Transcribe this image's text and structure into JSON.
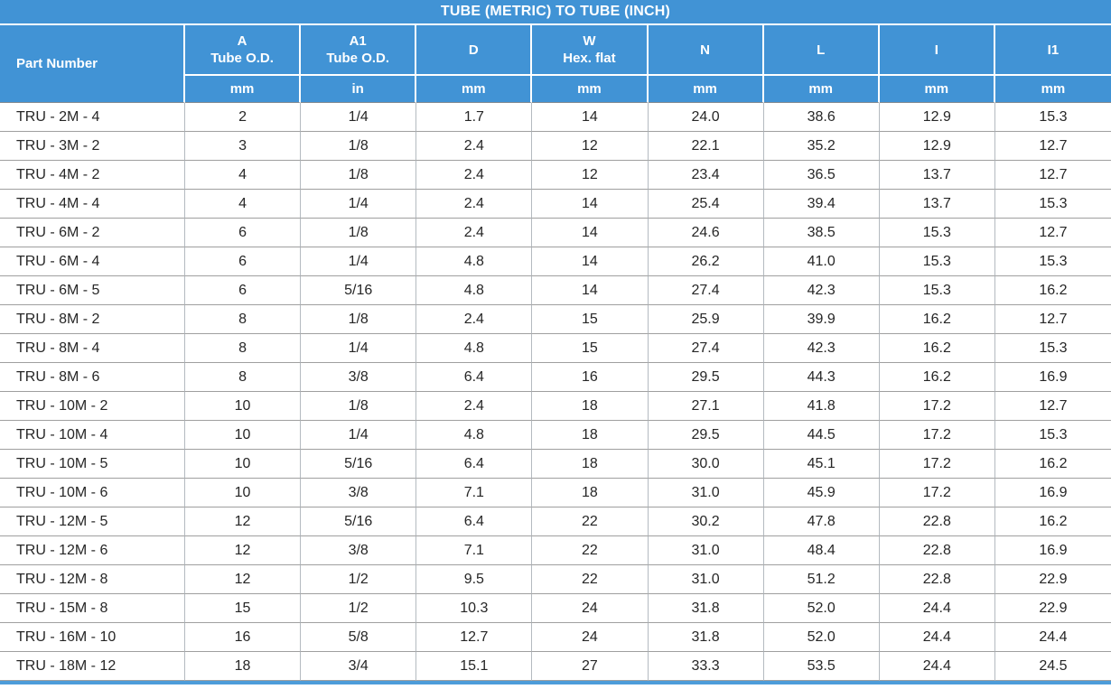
{
  "chart_data": {
    "type": "table",
    "title": "TUBE (METRIC) TO TUBE (INCH)",
    "columns": [
      {
        "label": "Part Number",
        "sub": "",
        "unit": ""
      },
      {
        "label": "A",
        "sub": "Tube O.D.",
        "unit": "mm"
      },
      {
        "label": "A1",
        "sub": "Tube O.D.",
        "unit": "in"
      },
      {
        "label": "D",
        "sub": "",
        "unit": "mm"
      },
      {
        "label": "W",
        "sub": "Hex. flat",
        "unit": "mm"
      },
      {
        "label": "N",
        "sub": "",
        "unit": "mm"
      },
      {
        "label": "L",
        "sub": "",
        "unit": "mm"
      },
      {
        "label": "I",
        "sub": "",
        "unit": "mm"
      },
      {
        "label": "I1",
        "sub": "",
        "unit": "mm"
      }
    ],
    "rows": [
      [
        "TRU - 2M - 4",
        "2",
        "1/4",
        "1.7",
        "14",
        "24.0",
        "38.6",
        "12.9",
        "15.3"
      ],
      [
        "TRU - 3M - 2",
        "3",
        "1/8",
        "2.4",
        "12",
        "22.1",
        "35.2",
        "12.9",
        "12.7"
      ],
      [
        "TRU - 4M - 2",
        "4",
        "1/8",
        "2.4",
        "12",
        "23.4",
        "36.5",
        "13.7",
        "12.7"
      ],
      [
        "TRU - 4M - 4",
        "4",
        "1/4",
        "2.4",
        "14",
        "25.4",
        "39.4",
        "13.7",
        "15.3"
      ],
      [
        "TRU - 6M - 2",
        "6",
        "1/8",
        "2.4",
        "14",
        "24.6",
        "38.5",
        "15.3",
        "12.7"
      ],
      [
        "TRU - 6M - 4",
        "6",
        "1/4",
        "4.8",
        "14",
        "26.2",
        "41.0",
        "15.3",
        "15.3"
      ],
      [
        "TRU - 6M - 5",
        "6",
        "5/16",
        "4.8",
        "14",
        "27.4",
        "42.3",
        "15.3",
        "16.2"
      ],
      [
        "TRU - 8M - 2",
        "8",
        "1/8",
        "2.4",
        "15",
        "25.9",
        "39.9",
        "16.2",
        "12.7"
      ],
      [
        "TRU - 8M - 4",
        "8",
        "1/4",
        "4.8",
        "15",
        "27.4",
        "42.3",
        "16.2",
        "15.3"
      ],
      [
        "TRU - 8M - 6",
        "8",
        "3/8",
        "6.4",
        "16",
        "29.5",
        "44.3",
        "16.2",
        "16.9"
      ],
      [
        "TRU - 10M - 2",
        "10",
        "1/8",
        "2.4",
        "18",
        "27.1",
        "41.8",
        "17.2",
        "12.7"
      ],
      [
        "TRU - 10M - 4",
        "10",
        "1/4",
        "4.8",
        "18",
        "29.5",
        "44.5",
        "17.2",
        "15.3"
      ],
      [
        "TRU - 10M - 5",
        "10",
        "5/16",
        "6.4",
        "18",
        "30.0",
        "45.1",
        "17.2",
        "16.2"
      ],
      [
        "TRU - 10M - 6",
        "10",
        "3/8",
        "7.1",
        "18",
        "31.0",
        "45.9",
        "17.2",
        "16.9"
      ],
      [
        "TRU - 12M - 5",
        "12",
        "5/16",
        "6.4",
        "22",
        "30.2",
        "47.8",
        "22.8",
        "16.2"
      ],
      [
        "TRU - 12M - 6",
        "12",
        "3/8",
        "7.1",
        "22",
        "31.0",
        "48.4",
        "22.8",
        "16.9"
      ],
      [
        "TRU - 12M - 8",
        "12",
        "1/2",
        "9.5",
        "22",
        "31.0",
        "51.2",
        "22.8",
        "22.9"
      ],
      [
        "TRU - 15M - 8",
        "15",
        "1/2",
        "10.3",
        "24",
        "31.8",
        "52.0",
        "24.4",
        "22.9"
      ],
      [
        "TRU - 16M - 10",
        "16",
        "5/8",
        "12.7",
        "24",
        "31.8",
        "52.0",
        "24.4",
        "24.4"
      ],
      [
        "TRU - 18M - 12",
        "18",
        "3/4",
        "15.1",
        "27",
        "33.3",
        "53.5",
        "24.4",
        "24.5"
      ]
    ],
    "layout_hints": {
      "header_color": "#4193d5",
      "header_text_color": "#ffffff",
      "body_text_color": "#262626",
      "row_divider_color": "#9f9f9f",
      "column_divider_color": "#b4bac0",
      "bottom_bar_color": "#4d9cd9"
    }
  }
}
